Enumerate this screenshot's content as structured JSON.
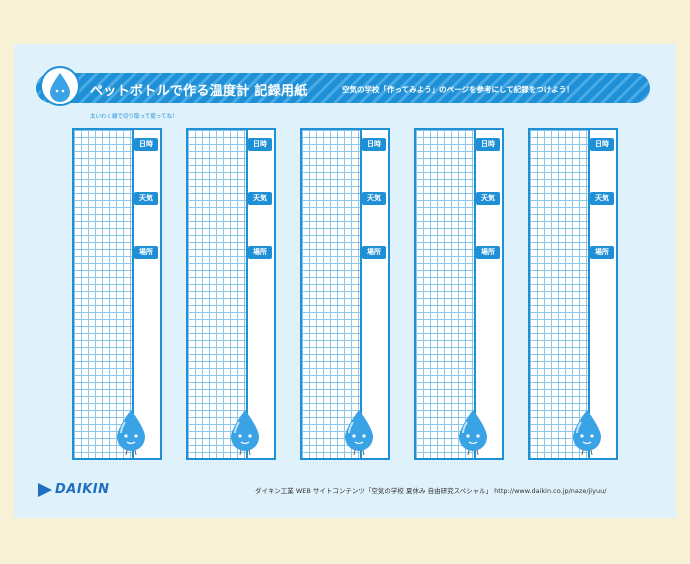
{
  "header": {
    "title": "ペットボトルで作る温度計 記録用紙",
    "subtitle": "空気の学校「作ってみよう」のページを参考にして記録をつけよう！",
    "cut_note": "太いわく線で切り取って使ってね！"
  },
  "scales": [
    {
      "tags": [
        "日時",
        "天気",
        "場所"
      ],
      "mascot": "water-drop-mascot-icon"
    },
    {
      "tags": [
        "日時",
        "天気",
        "場所"
      ],
      "mascot": "flying-drop-mascot-icon"
    },
    {
      "tags": [
        "日時",
        "天気",
        "場所"
      ],
      "mascot": "thinking-drop-mascot-icon"
    },
    {
      "tags": [
        "日時",
        "天気",
        "場所"
      ],
      "mascot": "surprised-drop-mascot-icon"
    },
    {
      "tags": [
        "日時",
        "天気",
        "場所"
      ],
      "mascot": "smiling-drop-mascot-icon"
    }
  ],
  "footer": {
    "brand": "DAIKIN",
    "text": "ダイキン工業 WEB サイトコンテンツ「空気の学校 夏休み 自由研究スペシャル」 http://www.daikin.co.jp/naze/jiyuu/"
  },
  "colors": {
    "accent": "#1f8fd6",
    "grid": "#8cc6ea",
    "sheet": "#dff1fb",
    "page": "#f7f1d6"
  }
}
